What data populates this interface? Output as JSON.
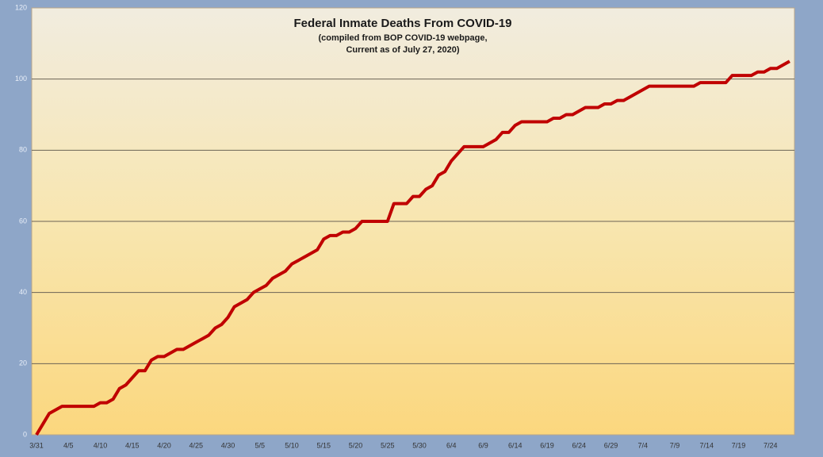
{
  "chart_data": {
    "type": "line",
    "title": "Federal Inmate Deaths From COVID-19",
    "subtitle": [
      "(compiled from BOP COVID-19 webpage,",
      "Current as of July 27, 2020)"
    ],
    "categories": [
      "3/31",
      null,
      null,
      null,
      null,
      "4/5",
      null,
      null,
      null,
      null,
      "4/10",
      null,
      null,
      null,
      null,
      "4/15",
      null,
      null,
      null,
      null,
      "4/20",
      null,
      null,
      null,
      null,
      "4/25",
      null,
      null,
      null,
      null,
      "4/30",
      null,
      null,
      null,
      null,
      "5/5",
      null,
      null,
      null,
      null,
      "5/10",
      null,
      null,
      null,
      null,
      "5/15",
      null,
      null,
      null,
      null,
      "5/20",
      null,
      null,
      null,
      null,
      "5/25",
      null,
      null,
      null,
      null,
      "5/30",
      null,
      null,
      null,
      null,
      "6/4",
      null,
      null,
      null,
      null,
      "6/9",
      null,
      null,
      null,
      null,
      "6/14",
      null,
      null,
      null,
      null,
      "6/19",
      null,
      null,
      null,
      null,
      "6/24",
      null,
      null,
      null,
      null,
      "6/29",
      null,
      null,
      null,
      null,
      "7/4",
      null,
      null,
      null,
      null,
      "7/9",
      null,
      null,
      null,
      null,
      "7/14",
      null,
      null,
      null,
      null,
      "7/19",
      null,
      null,
      null,
      null,
      "7/24",
      null,
      null,
      null
    ],
    "series": [
      {
        "name": "Deaths",
        "color": "#c00000",
        "values": [
          0,
          3,
          6,
          7,
          8,
          8,
          8,
          8,
          8,
          8,
          9,
          9,
          10,
          13,
          14,
          16,
          18,
          18,
          21,
          22,
          22,
          23,
          24,
          24,
          25,
          26,
          27,
          28,
          30,
          31,
          33,
          36,
          37,
          38,
          40,
          41,
          42,
          44,
          45,
          46,
          48,
          49,
          50,
          51,
          52,
          55,
          56,
          56,
          57,
          57,
          58,
          60,
          60,
          60,
          60,
          60,
          65,
          65,
          65,
          67,
          67,
          69,
          70,
          73,
          74,
          77,
          79,
          81,
          81,
          81,
          81,
          82,
          83,
          85,
          85,
          87,
          88,
          88,
          88,
          88,
          88,
          89,
          89,
          90,
          90,
          91,
          92,
          92,
          92,
          93,
          93,
          94,
          94,
          95,
          96,
          97,
          98,
          98,
          98,
          98,
          98,
          98,
          98,
          98,
          99,
          99,
          99,
          99,
          99,
          101,
          101,
          101,
          101,
          102,
          102,
          103,
          103,
          104,
          105
        ]
      }
    ],
    "ylim": [
      0,
      120
    ],
    "yticks": [
      0,
      20,
      40,
      60,
      80,
      100,
      120
    ],
    "grid": true
  }
}
